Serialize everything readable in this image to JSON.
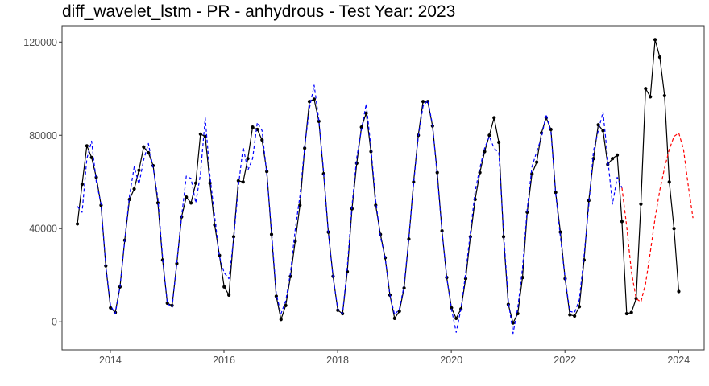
{
  "chart_data": {
    "type": "line",
    "title": "diff_wavelet_lstm - PR - anhydrous - Test Year: 2023",
    "xlabel": "",
    "ylabel": "",
    "xlim": [
      2013.15,
      2024.45
    ],
    "ylim": [
      -12000,
      127000
    ],
    "x_ticks": [
      2014,
      2016,
      2018,
      2020,
      2022,
      2024
    ],
    "x_tick_labels": [
      "2014",
      "2016",
      "2018",
      "2020",
      "2022",
      "2024"
    ],
    "y_ticks": [
      0,
      40000,
      80000,
      120000
    ],
    "y_tick_labels": [
      "0",
      "40000",
      "80000",
      "120000"
    ],
    "grid": false,
    "legend": "none",
    "x_start": 2013.42,
    "x_step": 0.08333,
    "series": [
      {
        "style": "solid-markers",
        "color": "#000000",
        "start_index": 0,
        "values": [
          42000,
          59000,
          75500,
          70500,
          62000,
          50000,
          24000,
          6000,
          4000,
          15000,
          35000,
          52500,
          57000,
          65000,
          75000,
          72500,
          67000,
          51000,
          26500,
          8000,
          7000,
          25000,
          45000,
          53500,
          51000,
          59500,
          80500,
          79500,
          59500,
          41500,
          28500,
          15000,
          11500,
          36500,
          60500,
          60000,
          70000,
          83500,
          82500,
          78000,
          64500,
          37500,
          11000,
          1000,
          7000,
          19500,
          34500,
          50000,
          74500,
          94500,
          95500,
          86000,
          63500,
          38500,
          19500,
          5000,
          3500,
          21500,
          48500,
          68000,
          83500,
          89500,
          73000,
          50000,
          37500,
          27500,
          11500,
          1500,
          4500,
          14500,
          35500,
          60000,
          80000,
          94500,
          94500,
          84000,
          64000,
          39000,
          19000,
          6000,
          1500,
          5500,
          18500,
          36500,
          52500,
          64000,
          73000,
          80000,
          87500,
          77000,
          36500,
          7500,
          -500,
          3500,
          19000,
          47000,
          63500,
          68500,
          81000,
          87500,
          82500,
          55500,
          38500,
          18500,
          3000,
          2500,
          6500,
          26500,
          52000,
          70000,
          84500,
          82000,
          67500,
          70000,
          71500,
          43000,
          3500,
          4000,
          10000,
          50500,
          100000,
          96500,
          121000,
          113500,
          97000,
          60000,
          40000,
          13000
        ]
      },
      {
        "style": "dashed",
        "color": "#0000ff",
        "start_index": 0,
        "values": [
          49500,
          47000,
          70000,
          77500,
          60000,
          50500,
          24000,
          7000,
          3500,
          15000,
          35000,
          54000,
          66500,
          59000,
          69500,
          76500,
          66000,
          53000,
          27500,
          8000,
          6000,
          25500,
          45000,
          62500,
          61500,
          51000,
          63500,
          87500,
          62500,
          45000,
          28000,
          21000,
          18500,
          35500,
          58000,
          75000,
          65000,
          70000,
          85500,
          82000,
          63500,
          39000,
          12000,
          3500,
          9000,
          21000,
          39500,
          54000,
          75000,
          91500,
          101500,
          86500,
          64500,
          38000,
          19000,
          5500,
          3500,
          23500,
          50000,
          70500,
          82500,
          93500,
          74500,
          52000,
          36500,
          27500,
          11500,
          3000,
          5500,
          15500,
          36000,
          59000,
          79500,
          92500,
          95000,
          84500,
          62500,
          39000,
          19000,
          5500,
          -4500,
          5500,
          21000,
          38500,
          56000,
          66000,
          74500,
          79500,
          74500,
          72500,
          38500,
          9000,
          -5000,
          6000,
          23000,
          48500,
          66500,
          73000,
          79000,
          89000,
          81500,
          55000,
          36500,
          18500,
          4500,
          4000,
          9500,
          28500,
          50000,
          73500,
          82000,
          90000,
          70000,
          50500,
          62000,
          57500
        ]
      },
      {
        "style": "dashed",
        "color": "#ff0000",
        "start_index": 115,
        "values": [
          57500,
          41000,
          21500,
          10000,
          8500,
          16500,
          30000,
          44500,
          56500,
          66000,
          74000,
          79500,
          81000,
          74000,
          58500,
          44500
        ]
      }
    ]
  }
}
